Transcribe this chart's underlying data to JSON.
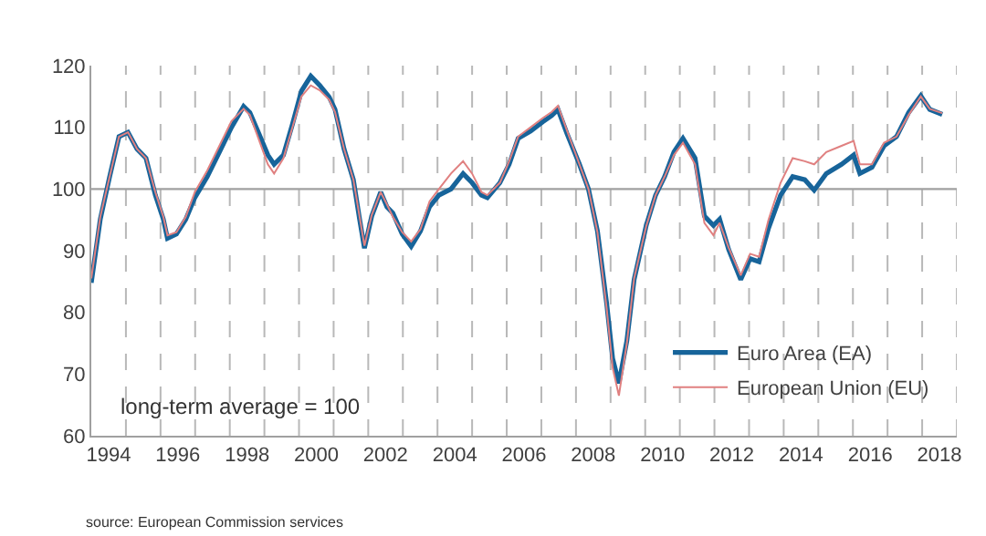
{
  "chart_data": {
    "type": "line",
    "x": [
      1994.0,
      1994.26,
      1994.53,
      1994.8,
      1995.06,
      1995.32,
      1995.58,
      1995.85,
      1996.08,
      1996.2,
      1996.46,
      1996.73,
      1996.99,
      1997.35,
      1997.7,
      1998.05,
      1998.4,
      1998.58,
      1998.84,
      1999.1,
      1999.28,
      1999.55,
      1999.81,
      2000.07,
      2000.34,
      2000.6,
      2000.87,
      2001.04,
      2001.3,
      2001.57,
      2001.75,
      2001.89,
      2002.1,
      2002.36,
      2002.54,
      2002.71,
      2002.98,
      2003.24,
      2003.51,
      2003.77,
      2004.04,
      2004.39,
      2004.74,
      2005.0,
      2005.27,
      2005.44,
      2005.8,
      2006.07,
      2006.33,
      2006.69,
      2007.04,
      2007.3,
      2007.48,
      2007.74,
      2008.1,
      2008.36,
      2008.62,
      2008.89,
      2009.06,
      2009.24,
      2009.47,
      2009.68,
      2010.03,
      2010.3,
      2010.56,
      2010.83,
      2011.09,
      2011.44,
      2011.71,
      2011.97,
      2012.15,
      2012.41,
      2012.76,
      2013.03,
      2013.29,
      2013.56,
      2013.91,
      2014.26,
      2014.61,
      2014.88,
      2015.23,
      2015.67,
      2016.02,
      2016.2,
      2016.55,
      2016.9,
      2017.26,
      2017.61,
      2017.96,
      2018.22,
      2018.58
    ],
    "series": [
      {
        "name": "Euro Area (EA)",
        "color": "#17649a",
        "values": [
          84.8,
          95.1,
          102,
          108.5,
          109.2,
          106.5,
          105,
          99,
          95.1,
          92,
          92.7,
          95.1,
          98.6,
          102,
          106,
          110,
          113.4,
          112.4,
          109,
          105.5,
          104,
          105.5,
          110.5,
          115.9,
          118.3,
          116.8,
          114.9,
          112.9,
          106.5,
          101.5,
          95.1,
          90.4,
          95.6,
          99.5,
          97.1,
          96.1,
          92.7,
          90.7,
          93.2,
          97.1,
          99,
          100,
          102.5,
          101,
          99,
          98.6,
          101,
          104,
          108.2,
          109.4,
          110.9,
          111.9,
          112.9,
          109,
          104,
          100,
          93.2,
          81.3,
          72.5,
          68.5,
          75.4,
          85.3,
          94.1,
          99,
          102,
          106,
          108.2,
          105,
          95.6,
          94.1,
          95.1,
          90.2,
          85.3,
          88.7,
          88.2,
          93.6,
          99,
          102,
          101.5,
          99.8,
          102.5,
          104,
          105.5,
          102.5,
          103.5,
          107,
          108.5,
          112.4,
          115.1,
          112.9,
          112.1
        ]
      },
      {
        "name": "European Union (EU)",
        "color": "#e08080",
        "values": [
          85.5,
          95.5,
          102,
          108.5,
          109.2,
          106.5,
          105,
          99.5,
          95.5,
          92.5,
          93,
          95.5,
          99.5,
          103,
          107,
          111,
          113,
          112,
          108,
          104,
          102.5,
          105,
          110,
          115,
          116.8,
          116,
          114.5,
          112.5,
          106.5,
          101.5,
          95.5,
          90.8,
          95.8,
          99.5,
          97.5,
          95.5,
          93,
          91.5,
          93.5,
          98,
          100,
          102.5,
          104.5,
          102.5,
          99.5,
          99,
          101,
          104.5,
          108.5,
          110,
          111.5,
          112.5,
          113.5,
          109.5,
          104,
          100,
          93,
          80.5,
          71,
          66.5,
          75,
          85.5,
          94,
          99,
          102,
          105.5,
          107.5,
          104,
          94.5,
          92.5,
          94.5,
          90.5,
          86,
          89.5,
          89,
          95,
          101,
          105,
          104.5,
          104,
          106,
          107,
          107.8,
          104,
          104,
          107.5,
          108.5,
          112,
          115,
          113,
          112.3
        ]
      }
    ],
    "xlim": [
      1994,
      2019
    ],
    "xticks": [
      {
        "value": 1994.5,
        "label": "1994"
      },
      {
        "value": 1996.5,
        "label": "1996"
      },
      {
        "value": 1998.5,
        "label": "1998"
      },
      {
        "value": 2000.5,
        "label": "2000"
      },
      {
        "value": 2002.5,
        "label": "2002"
      },
      {
        "value": 2004.5,
        "label": "2004"
      },
      {
        "value": 2006.5,
        "label": "2006"
      },
      {
        "value": 2008.5,
        "label": "2008"
      },
      {
        "value": 2010.5,
        "label": "2010"
      },
      {
        "value": 2012.5,
        "label": "2012"
      },
      {
        "value": 2014.5,
        "label": "2014"
      },
      {
        "value": 2016.5,
        "label": "2016"
      },
      {
        "value": 2018.5,
        "label": "2018"
      },
      {
        "value": 1995,
        "label": null
      },
      {
        "value": 1996,
        "label": null
      },
      {
        "value": 1997,
        "label": null
      },
      {
        "value": 1998,
        "label": null
      },
      {
        "value": 1999,
        "label": null
      },
      {
        "value": 2000,
        "label": null
      },
      {
        "value": 2001,
        "label": null
      },
      {
        "value": 2002,
        "label": null
      },
      {
        "value": 2003,
        "label": null
      },
      {
        "value": 2004,
        "label": null
      },
      {
        "value": 2005,
        "label": null
      },
      {
        "value": 2006,
        "label": null
      },
      {
        "value": 2007,
        "label": null
      },
      {
        "value": 2008,
        "label": null
      },
      {
        "value": 2009,
        "label": null
      },
      {
        "value": 2010,
        "label": null
      },
      {
        "value": 2011,
        "label": null
      },
      {
        "value": 2012,
        "label": null
      },
      {
        "value": 2013,
        "label": null
      },
      {
        "value": 2014,
        "label": null
      },
      {
        "value": 2015,
        "label": null
      },
      {
        "value": 2016,
        "label": null
      },
      {
        "value": 2017,
        "label": null
      },
      {
        "value": 2018,
        "label": null
      },
      {
        "value": 2019,
        "label": null
      }
    ],
    "ylim": [
      60,
      120
    ],
    "yticks": [
      60,
      70,
      80,
      90,
      100,
      110,
      120
    ],
    "ref_lines": [
      {
        "axis": "y",
        "value": 100,
        "color": "#a0a0a0"
      }
    ],
    "grid": "x",
    "legend": "bottom right",
    "marker": "none",
    "line_style": "solid",
    "annotations": [
      "long-term average = 100",
      "source: European Commission services"
    ]
  }
}
